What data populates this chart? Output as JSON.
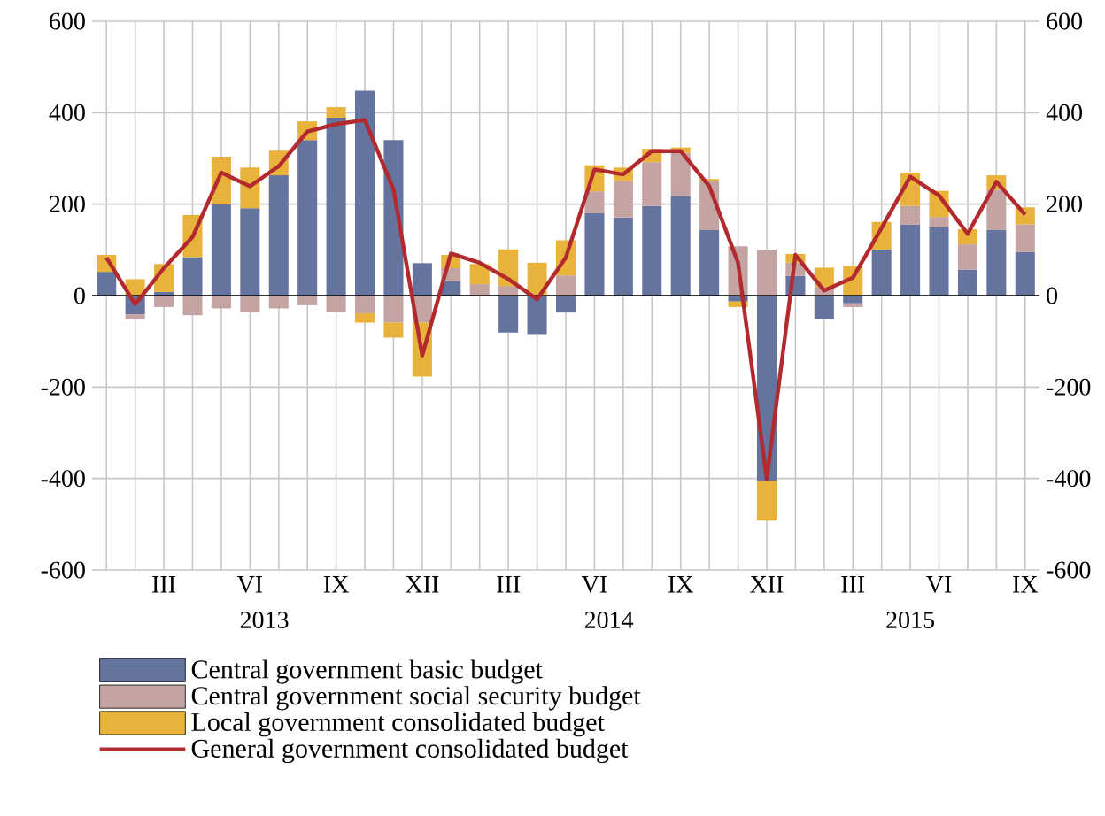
{
  "chart_data": {
    "type": "bar",
    "stacked": true,
    "categories": [
      null,
      null,
      "III",
      null,
      null,
      "VI",
      null,
      null,
      "IX",
      null,
      null,
      "XII",
      null,
      null,
      "III",
      null,
      null,
      "VI",
      null,
      null,
      "IX",
      null,
      null,
      "XII",
      null,
      null,
      "III",
      null,
      null,
      "VI",
      null,
      null,
      "IX"
    ],
    "series": [
      {
        "name": "Central government basic budget",
        "color": "#65739f",
        "values": [
          52,
          -41,
          8,
          84,
          200,
          191,
          263,
          340,
          389,
          448,
          340,
          71,
          32,
          0,
          -81,
          -84,
          -37,
          180,
          171,
          196,
          217,
          143,
          -13,
          -405,
          43,
          -51,
          -17,
          101,
          155,
          149,
          57,
          144,
          95
        ]
      },
      {
        "name": "Central government social security budget",
        "color": "#c4a3a3",
        "values": [
          0,
          -11,
          -25,
          -43,
          -28,
          -36,
          -28,
          -21,
          -36,
          -39,
          -59,
          -59,
          28,
          25,
          21,
          0,
          44,
          48,
          80,
          96,
          95,
          108,
          108,
          100,
          29,
          19,
          -8,
          0,
          41,
          23,
          55,
          88,
          61
        ]
      },
      {
        "name": "Local government consolidated budget",
        "color": "#e8b23b",
        "values": [
          37,
          36,
          61,
          92,
          104,
          89,
          54,
          41,
          23,
          -20,
          -33,
          -118,
          29,
          44,
          80,
          72,
          77,
          57,
          29,
          29,
          12,
          4,
          -12,
          -87,
          19,
          42,
          65,
          60,
          73,
          57,
          33,
          31,
          37
        ]
      },
      {
        "name": "General government consolidated budget",
        "type": "line",
        "color": "#b22a2e",
        "values": [
          83,
          -19,
          60,
          128,
          269,
          239,
          283,
          359,
          375,
          384,
          232,
          -131,
          92,
          72,
          36,
          -8,
          83,
          276,
          265,
          316,
          316,
          239,
          72,
          -401,
          89,
          11,
          39,
          148,
          260,
          219,
          135,
          249,
          177
        ]
      }
    ],
    "ylim": [
      -600,
      600
    ],
    "yticks": [
      -600,
      -400,
      -200,
      0,
      200,
      400,
      600
    ],
    "y2lim": [
      -600,
      600
    ],
    "y2ticks": [
      -600,
      -400,
      -200,
      0,
      200,
      400,
      600
    ],
    "grid": true,
    "legend": "bottom",
    "line_style": "solid",
    "annotations": [
      "2013",
      "2014",
      "2015"
    ]
  }
}
